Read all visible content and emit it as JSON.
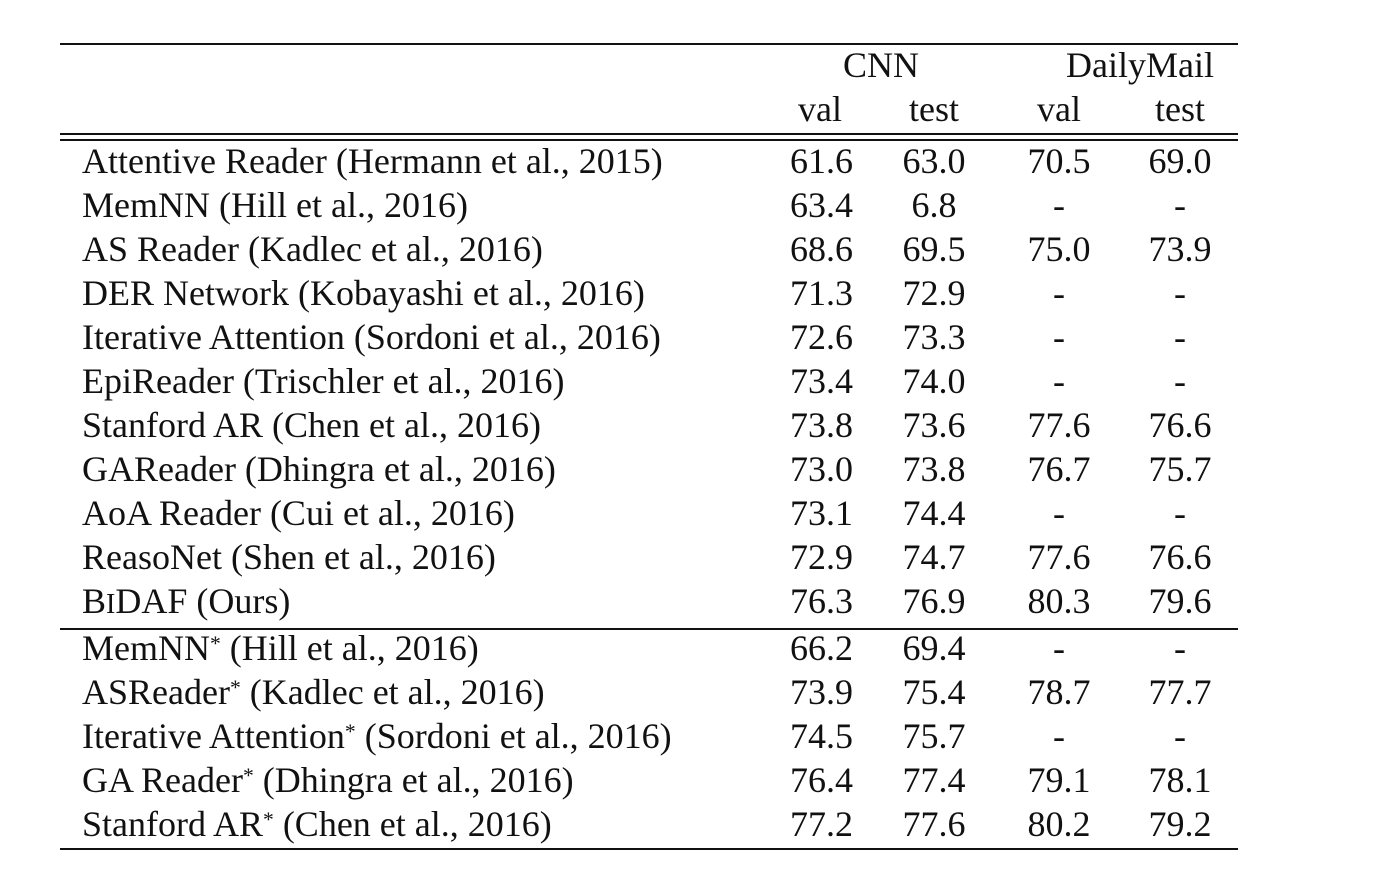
{
  "header": {
    "groups": [
      "CNN",
      "DailyMail"
    ],
    "subcolumns": [
      "val",
      "test",
      "val",
      "test"
    ]
  },
  "rows_main": [
    {
      "model": "Attentive Reader (Hermann et al., 2015)",
      "cnn_val": "61.6",
      "cnn_test": "63.0",
      "dm_val": "70.5",
      "dm_test": "69.0"
    },
    {
      "model": "MemNN (Hill et al., 2016)",
      "cnn_val": "63.4",
      "cnn_test": "6.8",
      "dm_val": "-",
      "dm_test": "-"
    },
    {
      "model": "AS Reader (Kadlec et al., 2016)",
      "cnn_val": "68.6",
      "cnn_test": "69.5",
      "dm_val": "75.0",
      "dm_test": "73.9"
    },
    {
      "model": "DER Network (Kobayashi et al., 2016)",
      "cnn_val": "71.3",
      "cnn_test": "72.9",
      "dm_val": "-",
      "dm_test": "-"
    },
    {
      "model": "Iterative Attention (Sordoni et al., 2016)",
      "cnn_val": "72.6",
      "cnn_test": "73.3",
      "dm_val": "-",
      "dm_test": "-"
    },
    {
      "model": "EpiReader (Trischler et al., 2016)",
      "cnn_val": "73.4",
      "cnn_test": "74.0",
      "dm_val": "-",
      "dm_test": "-"
    },
    {
      "model": "Stanford AR (Chen et al., 2016)",
      "cnn_val": "73.8",
      "cnn_test": "73.6",
      "dm_val": "77.6",
      "dm_test": "76.6"
    },
    {
      "model": "GAReader (Dhingra et al., 2016)",
      "cnn_val": "73.0",
      "cnn_test": "73.8",
      "dm_val": "76.7",
      "dm_test": "75.7"
    },
    {
      "model": "AoA Reader (Cui et al., 2016)",
      "cnn_val": "73.1",
      "cnn_test": "74.4",
      "dm_val": "-",
      "dm_test": "-"
    },
    {
      "model": "ReasoNet (Shen et al., 2016)",
      "cnn_val": "72.9",
      "cnn_test": "74.7",
      "dm_val": "77.6",
      "dm_test": "76.6"
    }
  ],
  "ours": {
    "model_b": "B",
    "model_i": "I",
    "model_rest": "DAF (Ours)",
    "cnn_val": "76.3",
    "cnn_test": "76.9",
    "dm_val": "80.3",
    "dm_test": "79.6"
  },
  "rows_ensemble": [
    {
      "model_name": "MemNN",
      "model_suffix": " (Hill et al., 2016)",
      "marker": "*",
      "cnn_val": "66.2",
      "cnn_test": "69.4",
      "dm_val": "-",
      "dm_test": "-"
    },
    {
      "model_name": "ASReader",
      "model_suffix": " (Kadlec et al., 2016)",
      "marker": "*",
      "cnn_val": "73.9",
      "cnn_test": "75.4",
      "dm_val": "78.7",
      "dm_test": "77.7"
    },
    {
      "model_name": "Iterative Attention",
      "model_suffix": " (Sordoni et al., 2016)",
      "marker": "*",
      "cnn_val": "74.5",
      "cnn_test": "75.7",
      "dm_val": "-",
      "dm_test": "-"
    },
    {
      "model_name": "GA Reader",
      "model_suffix": " (Dhingra et al., 2016)",
      "marker": "*",
      "cnn_val": "76.4",
      "cnn_test": "77.4",
      "dm_val": "79.1",
      "dm_test": "78.1"
    },
    {
      "model_name": "Stanford AR",
      "model_suffix": " (Chen et al., 2016)",
      "marker": "*",
      "cnn_val": "77.2",
      "cnn_test": "77.6",
      "dm_val": "80.2",
      "dm_test": "79.2"
    }
  ]
}
